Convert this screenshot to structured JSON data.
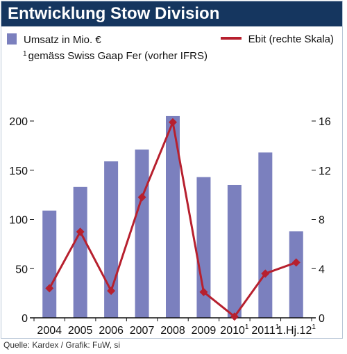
{
  "header": {
    "title": "Entwicklung Stow Division"
  },
  "legend": {
    "bar_label": "Umsatz in Mio. €",
    "line_label": "Ebit (rechte Skala)",
    "note_marker": "1",
    "note_text": "gemäss Swiss Gaap Fer (vorher IFRS)"
  },
  "footer": {
    "source": "Quelle: Kardex / Grafik: FuW, si"
  },
  "colors": {
    "bar": "#7b80be",
    "line": "#b7202e",
    "header_bg": "#15365f"
  },
  "chart_data": {
    "type": "bar",
    "categories": [
      "2004",
      "2005",
      "2006",
      "2007",
      "2008",
      "2009",
      "2010",
      "2011",
      "1.Hj.12"
    ],
    "category_superscripts": [
      "",
      "",
      "",
      "",
      "",
      "",
      "1",
      "1",
      "1"
    ],
    "series": [
      {
        "name": "Umsatz in Mio. €",
        "type": "bar",
        "axis": "left",
        "values": [
          109,
          133,
          159,
          171,
          205,
          143,
          135,
          168,
          88
        ]
      },
      {
        "name": "Ebit (rechte Skala)",
        "type": "line",
        "axis": "right",
        "values": [
          2.4,
          7.0,
          2.2,
          9.8,
          15.9,
          2.1,
          0.1,
          3.6,
          4.5
        ]
      }
    ],
    "ylim": [
      0,
      200
    ],
    "y2lim": [
      0,
      16
    ],
    "yticks": [
      "0",
      "50",
      "100",
      "150",
      "200"
    ],
    "y2ticks": [
      "0",
      "4",
      "8",
      "12",
      "16"
    ],
    "grid": false
  }
}
